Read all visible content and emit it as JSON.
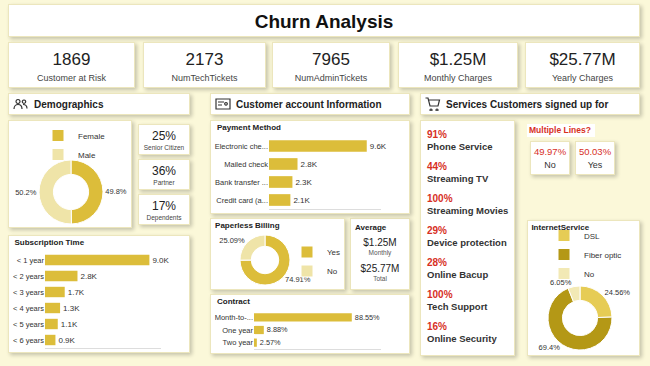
{
  "header": {
    "title": "Churn Analysis"
  },
  "kpis": [
    {
      "value": "1869",
      "label": "Customer at Risk"
    },
    {
      "value": "2173",
      "label": "NumTechTickets"
    },
    {
      "value": "7965",
      "label": "NumAdminTickets"
    },
    {
      "value": "$1.25M",
      "label": "Monthly Charges"
    },
    {
      "value": "$25.77M",
      "label": "Yearly Charges"
    }
  ],
  "sections": {
    "demographics": "Demographics",
    "account": "Customer account Information",
    "services": "Services Customers signed up for"
  },
  "demographic_stats": [
    {
      "value": "25%",
      "label": "Senior Citizen"
    },
    {
      "value": "36%",
      "label": "Partner"
    },
    {
      "value": "17%",
      "label": "Dependents"
    }
  ],
  "average": {
    "title": "Average",
    "items": [
      {
        "value": "$1.25M",
        "label": "Monthly"
      },
      {
        "value": "$25.77M",
        "label": "Total"
      }
    ]
  },
  "services": [
    {
      "value": "91%",
      "label": "Phone Service"
    },
    {
      "value": "44%",
      "label": "Streaming TV"
    },
    {
      "value": "100%",
      "label": "Streaming Movies"
    },
    {
      "value": "29%",
      "label": "Device protection"
    },
    {
      "value": "28%",
      "label": "Online Bacup"
    },
    {
      "value": "100%",
      "label": "Tech Support"
    },
    {
      "value": "16%",
      "label": "Online Security"
    }
  ],
  "multiple_lines": {
    "title": "Multiple Lines?",
    "items": [
      {
        "value": "49.97%",
        "label": "No"
      },
      {
        "value": "50.03%",
        "label": "Yes"
      }
    ]
  },
  "chart_data": [
    {
      "type": "donut",
      "categories": [
        "Female",
        "Male"
      ],
      "values": [
        49.8,
        50.2
      ],
      "value_labels": [
        "49.8%",
        "50.2%"
      ],
      "colors": [
        "#dcbd3a",
        "#efe4a8"
      ],
      "legend": "top",
      "data_labels": true
    },
    {
      "type": "bar",
      "title": "Subscription Time",
      "orientation": "horizontal",
      "categories": [
        "< 1 year",
        "< 2 years",
        "< 3 years",
        "< 4 years",
        "< 5 years",
        "< 6 years"
      ],
      "values": [
        9000,
        2800,
        1700,
        1300,
        1100,
        900
      ],
      "value_labels": [
        "9.0K",
        "2.8K",
        "1.7K",
        "1.3K",
        "1.1K",
        "0.9K"
      ],
      "color": "#dcbd3a",
      "xlim": [
        0,
        10000
      ],
      "data_labels": true,
      "tick_labels": "y"
    },
    {
      "type": "bar",
      "title": "Payment Method",
      "orientation": "horizontal",
      "categories": [
        "Electronic che...",
        "Mailed check",
        "Bank transfer ...",
        "Credit card (a..."
      ],
      "values": [
        9600,
        2800,
        2300,
        2100
      ],
      "value_labels": [
        "9.6K",
        "2.8K",
        "2.3K",
        "2.1K"
      ],
      "color": "#dcbd3a",
      "xlim": [
        0,
        11000
      ],
      "data_labels": true,
      "tick_labels": "y"
    },
    {
      "type": "donut",
      "title": "Paperless Billing",
      "categories": [
        "Yes",
        "No"
      ],
      "values": [
        74.91,
        25.09
      ],
      "value_labels": [
        "74.91%",
        "25.09%"
      ],
      "colors": [
        "#dcbd3a",
        "#efe4a8"
      ],
      "legend": "right",
      "data_labels": true
    },
    {
      "type": "bar",
      "title": "Contract",
      "orientation": "horizontal",
      "categories": [
        "Month-to-...",
        "One year",
        "Two year"
      ],
      "values": [
        88.55,
        8.88,
        2.57
      ],
      "value_labels": [
        "88.55%",
        "8.88%",
        "2.57%"
      ],
      "color": "#dcbd3a",
      "xlim": [
        0,
        115
      ],
      "data_labels": true,
      "tick_labels": "y"
    },
    {
      "type": "donut",
      "title": "InternetService",
      "categories": [
        "DSL",
        "Fiber optic",
        "No"
      ],
      "values": [
        24.56,
        69.4,
        6.05
      ],
      "value_labels": [
        "24.56%",
        "69.4%",
        "6.05%"
      ],
      "colors": [
        "#e6cc55",
        "#b49816",
        "#f2e9b5"
      ],
      "legend": "top",
      "data_labels": true
    }
  ]
}
